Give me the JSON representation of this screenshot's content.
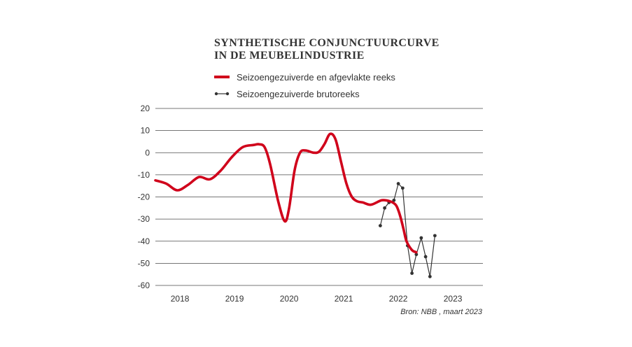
{
  "colors": {
    "smoothed": "#d0021b",
    "raw": "#333333",
    "grid": "#4a4a4a"
  },
  "chart_data": {
    "type": "line",
    "title_lines": [
      "SYNTHETISCHE CONJUNCTUURCURVE",
      "IN DE MEUBELINDUSTRIE"
    ],
    "xlabel": "",
    "ylabel": "",
    "xlim": [
      2017.55,
      2023.55
    ],
    "ylim": [
      -60,
      20
    ],
    "yticks": [
      20,
      10,
      0,
      -10,
      -20,
      -30,
      -40,
      -50,
      -60
    ],
    "xticks": [
      2018,
      2019,
      2020,
      2021,
      2022,
      2023
    ],
    "grid": true,
    "legend_position": "top-left",
    "series": [
      {
        "name": "Seizoengezuiverde en afgevlakte reeks",
        "style": "thick-smooth-line",
        "x": [
          2017.55,
          2017.75,
          2017.95,
          2018.15,
          2018.35,
          2018.55,
          2018.75,
          2018.95,
          2019.15,
          2019.35,
          2019.45,
          2019.55,
          2019.65,
          2019.8,
          2019.92,
          2020.0,
          2020.1,
          2020.2,
          2020.3,
          2020.45,
          2020.55,
          2020.65,
          2020.75,
          2020.85,
          2020.95,
          2021.05,
          2021.15,
          2021.25,
          2021.35,
          2021.5,
          2021.7,
          2021.85,
          2021.95,
          2022.0,
          2022.05,
          2022.1,
          2022.15,
          2022.25,
          2022.33
        ],
        "values": [
          -12.5,
          -14,
          -17,
          -14.5,
          -11,
          -12,
          -8,
          -2,
          2.5,
          3.5,
          3.8,
          2.5,
          -5,
          -22,
          -31,
          -25,
          -8,
          0,
          1,
          0,
          0.5,
          4,
          8.5,
          6,
          -4,
          -14,
          -20,
          -22,
          -22.5,
          -23.5,
          -21.5,
          -22,
          -23.5,
          -26,
          -30,
          -35,
          -40,
          -44,
          -45
        ]
      },
      {
        "name": "Seizoengezuiverde brutoreeks",
        "style": "line-with-markers",
        "x": [
          2021.67,
          2021.75,
          2021.83,
          2021.92,
          2022.0,
          2022.08,
          2022.17,
          2022.25,
          2022.33,
          2022.42,
          2022.5,
          2022.58,
          2022.67
        ],
        "values": [
          -33,
          -25,
          -22.5,
          -21.5,
          -14,
          -16,
          -42,
          -54.5,
          -46,
          -38.5,
          -47,
          -56,
          -37.5
        ]
      }
    ]
  },
  "source": "Bron: NBB , maart 2023"
}
